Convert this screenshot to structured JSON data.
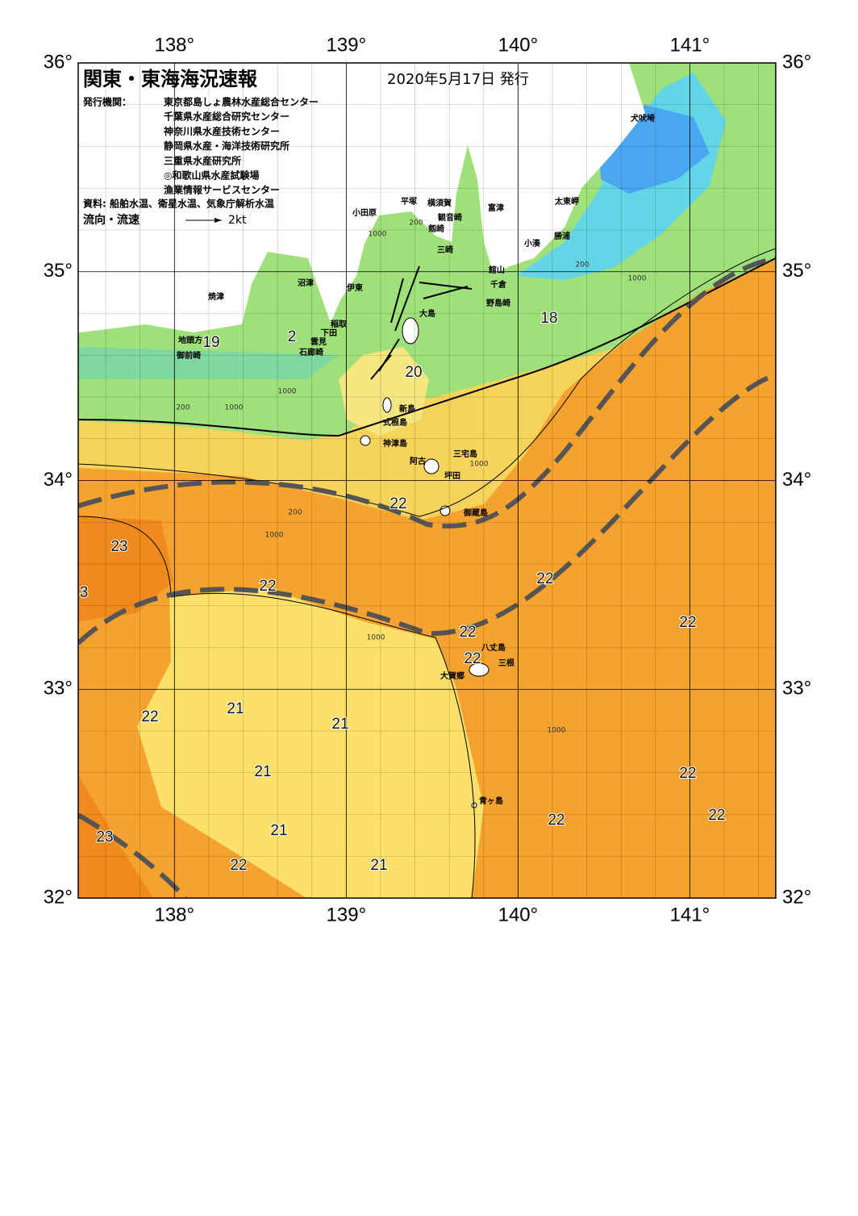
{
  "header": {
    "title": "関東・東海海況速報",
    "date": "2020年5月17日 発行"
  },
  "issuers": {
    "label": "発行機関：",
    "names": [
      "東京都島しょ農林水産総合センター",
      "千葉県水産総合研究センター",
      "神奈川県水産技術センター",
      "静岡県水産・海洋技術研究所",
      "三重県水産研究所",
      "◎和歌山県水産試験場",
      "漁業情報サービスセンター"
    ]
  },
  "source": "資料: 船舶水温、衛星水温、気象庁解析水温",
  "legend": {
    "label": "流向・流速",
    "speed": "2kt"
  },
  "map": {
    "xlim": [
      137.44,
      141.5
    ],
    "ylim": [
      32,
      36
    ],
    "xticks": [
      {
        "value": 138,
        "label": "138°"
      },
      {
        "value": 139,
        "label": "139°"
      },
      {
        "value": 140,
        "label": "140°"
      },
      {
        "value": 141,
        "label": "141°"
      }
    ],
    "yticks": [
      {
        "value": 32,
        "label": "32°"
      },
      {
        "value": 33,
        "label": "33°"
      },
      {
        "value": 34,
        "label": "34°"
      },
      {
        "value": 35,
        "label": "35°"
      },
      {
        "value": 36,
        "label": "36°"
      }
    ]
  },
  "places": [
    "犬吠埼",
    "太東岬",
    "勝浦",
    "小湊",
    "館山",
    "千倉",
    "野島崎",
    "富津",
    "横須賀",
    "観音崎",
    "剱崎",
    "三崎",
    "平塚",
    "小田原",
    "伊東",
    "沼津",
    "焼津",
    "大島",
    "稲取",
    "下田",
    "雲見",
    "石廊崎",
    "地頭方",
    "御前崎",
    "新島",
    "式根島",
    "神津島",
    "三宅島",
    "阿古",
    "坪田",
    "御蔵島",
    "八丈島",
    "三根",
    "大賀郷",
    "青ヶ島"
  ],
  "temperature_labels": [
    19,
    2,
    20,
    18,
    22,
    23,
    3,
    22,
    22,
    22,
    22,
    22,
    22,
    21,
    21,
    21,
    22,
    22,
    22,
    23,
    21,
    22,
    21
  ],
  "depth_labels": [
    200,
    1000,
    200,
    1000,
    1000,
    200,
    1000,
    1000,
    1000,
    1000,
    1000,
    200
  ]
}
